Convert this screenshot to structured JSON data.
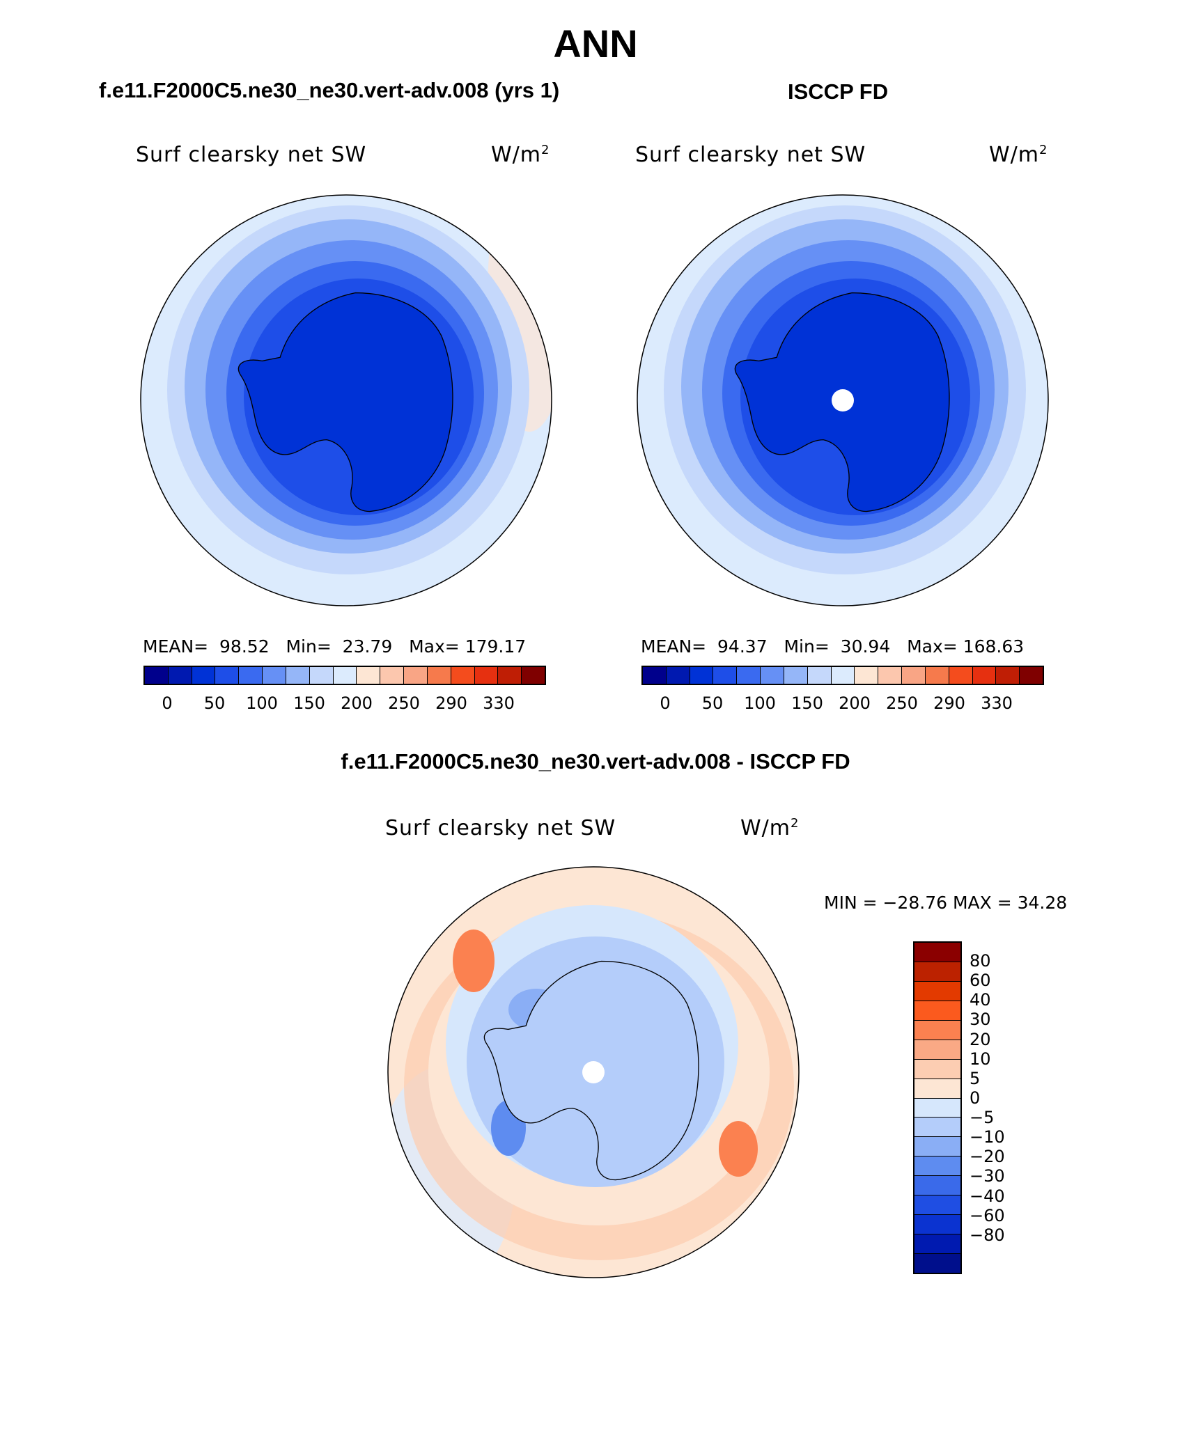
{
  "title": "ANN",
  "panel_left": {
    "case": "f.e11.F2000C5.ne30_ne30.vert-adv.008 (yrs 1)",
    "variable": "Surf clearsky net SW",
    "units": "W/m",
    "units_sup": "2",
    "stats": {
      "mean_label": "MEAN=",
      "mean": "98.52",
      "min_label": "Min=",
      "min": "23.79",
      "max_label": "Max=",
      "max": "179.17"
    }
  },
  "panel_right": {
    "case": "ISCCP FD",
    "variable": "Surf clearsky net SW",
    "units": "W/m",
    "units_sup": "2",
    "stats": {
      "mean_label": "MEAN=",
      "mean": "94.37",
      "min_label": "Min=",
      "min": "30.94",
      "max_label": "Max=",
      "max": "168.63"
    }
  },
  "panel_diff": {
    "case": "f.e11.F2000C5.ne30_ne30.vert-adv.008 - ISCCP FD",
    "variable": "Surf clearsky net SW",
    "units": "W/m",
    "units_sup": "2",
    "minmax": "MIN = −28.76  MAX =   34.28"
  },
  "colorbar_main": {
    "colors": [
      "#00008c",
      "#0019b0",
      "#0032d6",
      "#1e4ee8",
      "#3a6af0",
      "#6690f5",
      "#95b6f8",
      "#c5d8fb",
      "#dcebfd",
      "#fde6d4",
      "#fcc7ae",
      "#f9a585",
      "#f67a4c",
      "#f44c1d",
      "#e63010",
      "#bf1e05",
      "#7f0000"
    ],
    "ticks": [
      "0",
      "50",
      "100",
      "150",
      "200",
      "250",
      "290",
      "330"
    ]
  },
  "colorbar_diff": {
    "colors": [
      "#8b0000",
      "#bc2200",
      "#e33a00",
      "#fb5a1e",
      "#fb8150",
      "#faa985",
      "#fccdb2",
      "#fde6d4",
      "#d6e7fc",
      "#b4cdfa",
      "#8aaef5",
      "#5e8cf0",
      "#3a6aea",
      "#1f4ee3",
      "#0b33d0",
      "#001ab0",
      "#000f8c"
    ],
    "ticks": [
      "80",
      "60",
      "40",
      "30",
      "20",
      "10",
      "5",
      "0",
      "−5",
      "−10",
      "−20",
      "−30",
      "−40",
      "−60",
      "−80"
    ]
  }
}
